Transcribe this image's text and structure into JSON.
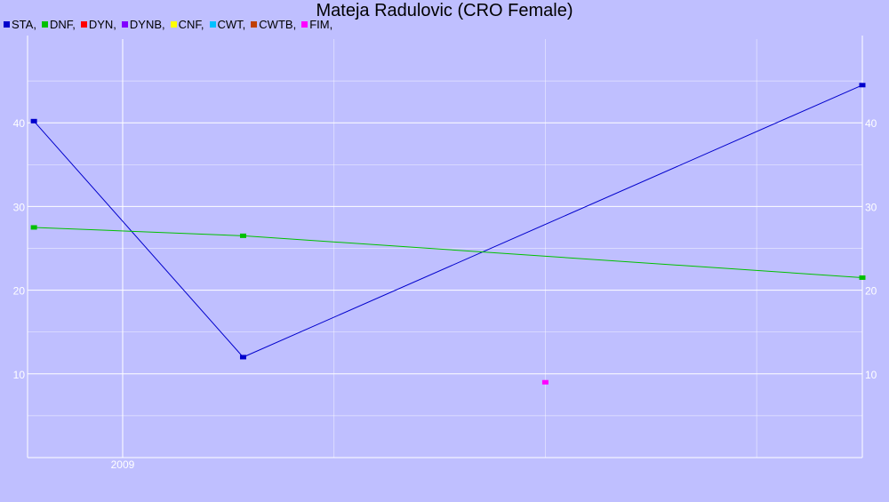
{
  "colors": {
    "background": "#bfbfff",
    "grid": "#ffffff"
  },
  "legend": [
    {
      "label": "STA,",
      "color": "#0000cc"
    },
    {
      "label": "DNF,",
      "color": "#00c000"
    },
    {
      "label": "DYN,",
      "color": "#ff0000"
    },
    {
      "label": "DYNB,",
      "color": "#8000ff"
    },
    {
      "label": "CNF,",
      "color": "#ffff00"
    },
    {
      "label": "CWT,",
      "color": "#00c0ff"
    },
    {
      "label": "CWTB,",
      "color": "#c04000"
    },
    {
      "label": "FIM,",
      "color": "#ff00ff"
    }
  ],
  "chart_data": {
    "type": "line",
    "title": "Mateja Radulovic (CRO Female)",
    "xlabel": "",
    "ylabel": "",
    "x_ticks": [
      {
        "label": "2009",
        "value": 2009.0
      }
    ],
    "xlim": [
      2008.55,
      2012.5
    ],
    "ylim": [
      0,
      50
    ],
    "y_ticks": [
      10,
      20,
      30,
      40
    ],
    "y_gridlines": [
      5,
      10,
      15,
      20,
      25,
      30,
      35,
      40,
      45
    ],
    "x_gridlines": [
      2009.0,
      2010.0,
      2011.0,
      2012.0
    ],
    "grid": true,
    "legend_position": "top-left",
    "series": [
      {
        "name": "STA",
        "color": "#0000cc",
        "points": [
          [
            2008.58,
            40.2
          ],
          [
            2009.57,
            12.0
          ],
          [
            2012.5,
            44.5
          ]
        ]
      },
      {
        "name": "DNF",
        "color": "#00c000",
        "points": [
          [
            2008.58,
            27.5
          ],
          [
            2009.57,
            26.5
          ],
          [
            2012.5,
            21.5
          ]
        ]
      },
      {
        "name": "FIM",
        "color": "#ff00ff",
        "points": [
          [
            2011.0,
            9.0
          ]
        ]
      }
    ]
  }
}
